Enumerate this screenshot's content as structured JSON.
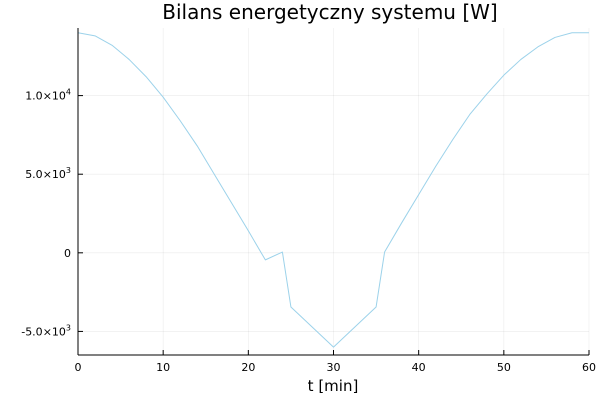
{
  "chart_data": {
    "type": "line",
    "title": "Bilans energetyczny systemu [W]",
    "xlabel": "t [min]",
    "ylabel": "",
    "xlim": [
      0,
      60
    ],
    "ylim": [
      -6500,
      14300
    ],
    "grid": true,
    "legend": "none",
    "colors": {
      "series": "#9cd2ea",
      "axis": "#000000",
      "grid": "#ebebeb"
    },
    "x_ticks": [
      {
        "value": 0,
        "label": "0"
      },
      {
        "value": 10,
        "label": "10"
      },
      {
        "value": 20,
        "label": "20"
      },
      {
        "value": 30,
        "label": "30"
      },
      {
        "value": 40,
        "label": "40"
      },
      {
        "value": 50,
        "label": "50"
      },
      {
        "value": 60,
        "label": "60"
      }
    ],
    "y_ticks": [
      {
        "value": -5000,
        "mantissa": "-5.0",
        "times": "×10",
        "exp": "3"
      },
      {
        "value": 0,
        "mantissa": "0",
        "times": "",
        "exp": ""
      },
      {
        "value": 5000,
        "mantissa": "5.0",
        "times": "×10",
        "exp": "3"
      },
      {
        "value": 10000,
        "mantissa": "1.0",
        "times": "×10",
        "exp": "4"
      }
    ],
    "series": [
      {
        "x": [
          0,
          2,
          4,
          6,
          8,
          10,
          12,
          14,
          16,
          18,
          20,
          22,
          24,
          25,
          30,
          35,
          36,
          38,
          40,
          42,
          44,
          46,
          48,
          50,
          52,
          54,
          56,
          58,
          60
        ],
        "y": [
          14000,
          13800,
          13200,
          12300,
          11200,
          9900,
          8400,
          6800,
          5000,
          3200,
          1400,
          -450,
          50,
          -3450,
          -6000,
          -3450,
          50,
          1900,
          3700,
          5500,
          7200,
          8800,
          10100,
          11300,
          12300,
          13100,
          13700,
          14000,
          14000
        ]
      }
    ]
  }
}
